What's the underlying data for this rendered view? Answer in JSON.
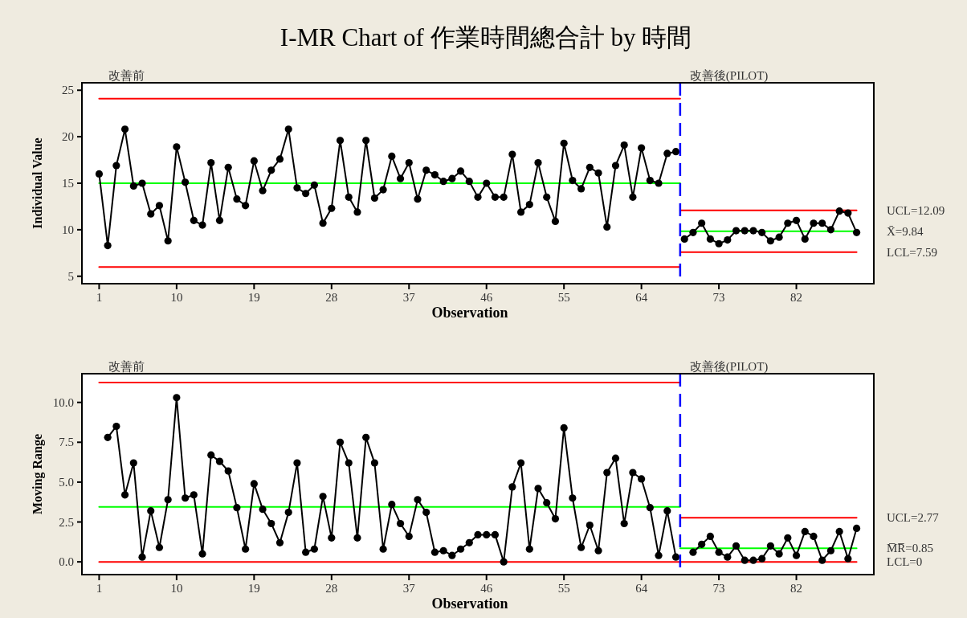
{
  "chart_data": [
    {
      "type": "line",
      "title": "I-MR Chart of 作業時間總合計 by 時間",
      "xlabel": "Observation",
      "ylabel": "Individual Value",
      "xlim": [
        -1,
        91
      ],
      "xticks": [
        1,
        10,
        19,
        28,
        37,
        46,
        55,
        64,
        73,
        82
      ],
      "ylim": [
        4.2,
        25.8
      ],
      "yticks": [
        5,
        10,
        15,
        20,
        25
      ],
      "marker": "circle",
      "series": [
        {
          "color": "#ff0000",
          "marker": "none",
          "x": [
            1,
            68.5
          ],
          "values": [
            24.1,
            24.1
          ]
        },
        {
          "color": "#00ff00",
          "marker": "none",
          "x": [
            1,
            68.5
          ],
          "values": [
            15.0,
            15.0
          ]
        },
        {
          "color": "#ff0000",
          "marker": "none",
          "x": [
            1,
            68.5
          ],
          "values": [
            6.0,
            6.0
          ]
        },
        {
          "name": "UCL=12.09",
          "color": "#ff0000",
          "marker": "none",
          "x": [
            68.5,
            89
          ],
          "values": [
            12.09,
            12.09
          ]
        },
        {
          "name": "X̄=9.84",
          "color": "#00ff00",
          "marker": "none",
          "x": [
            68.5,
            89
          ],
          "values": [
            9.84,
            9.84
          ]
        },
        {
          "name": "LCL=7.59",
          "color": "#ff0000",
          "marker": "none",
          "x": [
            68.5,
            89
          ],
          "values": [
            7.59,
            7.59
          ]
        },
        {
          "color": "#000000",
          "x": [
            1,
            2,
            3,
            4,
            5,
            6,
            7,
            8,
            9,
            10,
            11,
            12,
            13,
            14,
            15,
            16,
            17,
            18,
            19,
            20,
            21,
            22,
            23,
            24,
            25,
            26,
            27,
            28,
            29,
            30,
            31,
            32,
            33,
            34,
            35,
            36,
            37,
            38,
            39,
            40,
            41,
            42,
            43,
            44,
            45,
            46,
            47,
            48,
            49,
            50,
            51,
            52,
            53,
            54,
            55,
            56,
            57,
            58,
            59,
            60,
            61,
            62,
            63,
            64,
            65,
            66,
            67,
            68
          ],
          "values": [
            16.0,
            8.3,
            16.9,
            20.8,
            14.7,
            15.0,
            11.7,
            12.6,
            8.8,
            18.9,
            15.1,
            11.0,
            10.5,
            17.2,
            11.0,
            16.7,
            13.3,
            12.6,
            17.4,
            14.2,
            16.4,
            17.6,
            20.8,
            14.5,
            13.9,
            14.8,
            10.7,
            12.3,
            19.6,
            13.5,
            11.9,
            19.6,
            13.4,
            14.3,
            17.9,
            15.5,
            17.2,
            13.3,
            16.4,
            15.9,
            15.2,
            15.5,
            16.3,
            15.2,
            13.5,
            15.0,
            13.5,
            13.5,
            18.1,
            11.9,
            12.7,
            17.2,
            13.5,
            10.9,
            19.3,
            15.3,
            14.4,
            16.7,
            16.1,
            10.3,
            16.9,
            19.1,
            13.5,
            18.8,
            15.3,
            15.0,
            18.2,
            18.4
          ]
        },
        {
          "color": "#000000",
          "x": [
            69,
            70,
            71,
            72,
            73,
            74,
            75,
            76,
            77,
            78,
            79,
            80,
            81,
            82,
            83,
            84,
            85,
            86,
            87,
            88,
            89
          ],
          "values": [
            9.0,
            9.7,
            10.7,
            9.0,
            8.5,
            8.9,
            9.9,
            9.9,
            9.9,
            9.7,
            8.8,
            9.2,
            10.7,
            11.0,
            9.0,
            10.7,
            10.7,
            10.0,
            12.0,
            11.8,
            9.7
          ]
        }
      ],
      "ref_lines": [
        {
          "axis": "x",
          "value": 68.5,
          "color": "#0000ff",
          "line_style": "dashed"
        }
      ],
      "annotations": [
        "改善前",
        "改善後(PILOT)"
      ]
    },
    {
      "type": "line",
      "xlabel": "Observation",
      "ylabel": "Moving Range",
      "xlim": [
        -1,
        91
      ],
      "xticks": [
        1,
        10,
        19,
        28,
        37,
        46,
        55,
        64,
        73,
        82
      ],
      "ylim": [
        -0.8,
        11.8
      ],
      "yticks": [
        {
          "value": 0,
          "label": "0.0"
        },
        {
          "value": 2.5,
          "label": "2.5"
        },
        {
          "value": 5,
          "label": "5.0"
        },
        {
          "value": 7.5,
          "label": "7.5"
        },
        {
          "value": 10,
          "label": "10.0"
        }
      ],
      "marker": "circle",
      "series": [
        {
          "color": "#ff0000",
          "marker": "none",
          "x": [
            1,
            68.5
          ],
          "values": [
            11.25,
            11.25
          ]
        },
        {
          "color": "#00ff00",
          "marker": "none",
          "x": [
            1,
            68.5
          ],
          "values": [
            3.44,
            3.44
          ]
        },
        {
          "name": "LCL=0",
          "color": "#ff0000",
          "marker": "none",
          "x": [
            1,
            89
          ],
          "values": [
            0,
            0
          ]
        },
        {
          "name": "UCL=2.77",
          "color": "#ff0000",
          "marker": "none",
          "x": [
            68.5,
            89
          ],
          "values": [
            2.77,
            2.77
          ]
        },
        {
          "name": "M̅R̅=0.85",
          "color": "#00ff00",
          "marker": "none",
          "x": [
            68.5,
            89
          ],
          "values": [
            0.85,
            0.85
          ]
        },
        {
          "color": "#000000",
          "x": [
            2,
            3,
            4,
            5,
            6,
            7,
            8,
            9,
            10,
            11,
            12,
            13,
            14,
            15,
            16,
            17,
            18,
            19,
            20,
            21,
            22,
            23,
            24,
            25,
            26,
            27,
            28,
            29,
            30,
            31,
            32,
            33,
            34,
            35,
            36,
            37,
            38,
            39,
            40,
            41,
            42,
            43,
            44,
            45,
            46,
            47,
            48,
            49,
            50,
            51,
            52,
            53,
            54,
            55,
            56,
            57,
            58,
            59,
            60,
            61,
            62,
            63,
            64,
            65,
            66,
            67,
            68
          ],
          "values": [
            7.8,
            8.5,
            4.2,
            6.2,
            0.3,
            3.2,
            0.9,
            3.9,
            10.3,
            4.0,
            4.2,
            0.5,
            6.7,
            6.3,
            5.7,
            3.4,
            0.8,
            4.9,
            3.3,
            2.4,
            1.2,
            3.1,
            6.2,
            0.6,
            0.8,
            4.1,
            1.5,
            7.5,
            6.2,
            1.5,
            7.8,
            6.2,
            0.8,
            3.6,
            2.4,
            1.6,
            3.9,
            3.1,
            0.6,
            0.7,
            0.4,
            0.8,
            1.2,
            1.7,
            1.7,
            1.7,
            0.0,
            4.7,
            6.2,
            0.8,
            4.6,
            3.7,
            2.7,
            8.4,
            4.0,
            0.9,
            2.3,
            0.7,
            5.6,
            6.5,
            2.4,
            5.6,
            5.2,
            3.4,
            0.4,
            3.2,
            0.3
          ]
        },
        {
          "color": "#000000",
          "x": [
            70,
            71,
            72,
            73,
            74,
            75,
            76,
            77,
            78,
            79,
            80,
            81,
            82,
            83,
            84,
            85,
            86,
            87,
            88,
            89
          ],
          "values": [
            0.6,
            1.1,
            1.6,
            0.6,
            0.3,
            1.0,
            0.1,
            0.1,
            0.2,
            1.0,
            0.5,
            1.5,
            0.4,
            1.9,
            1.6,
            0.1,
            0.7,
            1.9,
            0.2,
            2.1
          ]
        }
      ],
      "ref_lines": [
        {
          "axis": "x",
          "value": 68.5,
          "color": "#0000ff",
          "line_style": "dashed"
        }
      ],
      "annotations": [
        "改善前",
        "改善後(PILOT)"
      ]
    }
  ]
}
